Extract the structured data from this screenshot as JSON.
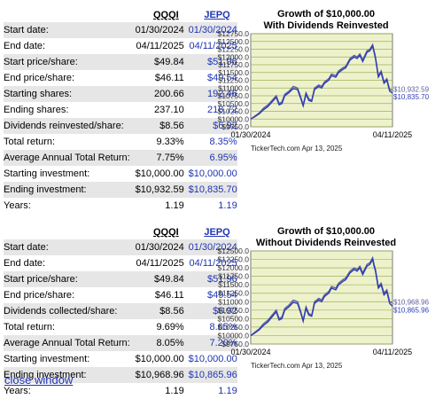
{
  "close_link": "close window",
  "colors": {
    "qqqi": "#5d5d9a",
    "jepq": "#2b3db8",
    "link": "#1f35b3",
    "plot_bg": "#eef2cc",
    "grid": "#9faf5a"
  },
  "sections": [
    {
      "headers": {
        "qqqi": "QQQI",
        "jepq": "JEPQ"
      },
      "rows": [
        {
          "label": "Start date:",
          "qqqi": "01/30/2024",
          "jepq": "01/30/2024"
        },
        {
          "label": "End date:",
          "qqqi": "04/11/2025",
          "jepq": "04/11/2025"
        },
        {
          "label": "Start price/share:",
          "qqqi": "$49.84",
          "jepq": "$51.96"
        },
        {
          "label": "End price/share:",
          "qqqi": "$46.11",
          "jepq": "$49.54"
        },
        {
          "label": "Starting shares:",
          "qqqi": "200.66",
          "jepq": "192.46"
        },
        {
          "label": "Ending shares:",
          "qqqi": "237.10",
          "jepq": "218.72"
        },
        {
          "label": "Dividends reinvested/share:",
          "qqqi": "$8.56",
          "jepq": "$6.92"
        },
        {
          "label": "Total return:",
          "qqqi": "9.33%",
          "jepq": "8.35%"
        },
        {
          "label": "Average Annual Total Return:",
          "qqqi": "7.75%",
          "jepq": "6.95%"
        },
        {
          "label": "Starting investment:",
          "qqqi": "$10,000.00",
          "jepq": "$10,000.00"
        },
        {
          "label": "Ending investment:",
          "qqqi": "$10,932.59",
          "jepq": "$10,835.70"
        },
        {
          "label": "Years:",
          "qqqi": "1.19",
          "jepq": "1.19"
        }
      ],
      "chart_data": {
        "type": "line",
        "title": "Growth of $10,000.00",
        "subtitle": "With Dividends Reinvested",
        "ylim": [
          9750,
          12750
        ],
        "yticks": [
          "$12750.0",
          "$12500.0",
          "$12250.0",
          "$12000.0",
          "$11750.0",
          "$11500.0",
          "$11250.0",
          "$11000.0",
          "$10750.0",
          "$10500.0",
          "$10250.0",
          "$10000.0",
          "$9750.0"
        ],
        "xlabels": [
          "01/30/2024",
          "04/11/2025"
        ],
        "credit": "TickerTech.com Apr 13, 2025",
        "end_labels": [
          "$10,932.59",
          "$10,835.70"
        ],
        "x": [
          0,
          0.03,
          0.06,
          0.09,
          0.12,
          0.15,
          0.18,
          0.2,
          0.22,
          0.24,
          0.27,
          0.3,
          0.33,
          0.35,
          0.37,
          0.39,
          0.41,
          0.43,
          0.45,
          0.48,
          0.5,
          0.52,
          0.55,
          0.57,
          0.6,
          0.62,
          0.65,
          0.67,
          0.7,
          0.73,
          0.75,
          0.77,
          0.79,
          0.82,
          0.84,
          0.86,
          0.87,
          0.88,
          0.9,
          0.92,
          0.94,
          0.96,
          0.98,
          1.0
        ],
        "series": [
          {
            "values": [
              10000,
              10100,
              10200,
              10350,
              10450,
              10600,
              10750,
              10500,
              10550,
              10800,
              10900,
              11050,
              11000,
              10750,
              10450,
              10850,
              10650,
              10600,
              11000,
              11100,
              11050,
              11200,
              11300,
              11450,
              11400,
              11550,
              11650,
              11700,
              11950,
              12050,
              12000,
              12100,
              11900,
              12200,
              12250,
              12400,
              12200,
              12000,
              11400,
              11550,
              11200,
              11300,
              10950,
              10930
            ]
          },
          {
            "values": [
              10000,
              10080,
              10170,
              10300,
              10400,
              10550,
              10700,
              10460,
              10500,
              10750,
              10850,
              10980,
              10950,
              10700,
              10420,
              10800,
              10600,
              10570,
              10950,
              11050,
              11000,
              11150,
              11250,
              11400,
              11350,
              11500,
              11600,
              11650,
              11900,
              12000,
              11950,
              12050,
              11850,
              12150,
              12200,
              12350,
              12150,
              11950,
              11350,
              11500,
              11150,
              11250,
              10900,
              10835
            ]
          }
        ]
      }
    },
    {
      "headers": {
        "qqqi": "QQQI",
        "jepq": "JEPQ"
      },
      "rows": [
        {
          "label": "Start date:",
          "qqqi": "01/30/2024",
          "jepq": "01/30/2024"
        },
        {
          "label": "End date:",
          "qqqi": "04/11/2025",
          "jepq": "04/11/2025"
        },
        {
          "label": "Start price/share:",
          "qqqi": "$49.84",
          "jepq": "$51.96"
        },
        {
          "label": "End price/share:",
          "qqqi": "$46.11",
          "jepq": "$49.54"
        },
        {
          "label": "Dividends collected/share:",
          "qqqi": "$8.56",
          "jepq": "$6.92"
        },
        {
          "label": "Total return:",
          "qqqi": "9.69%",
          "jepq": "8.65%"
        },
        {
          "label": "Average Annual Total Return:",
          "qqqi": "8.05%",
          "jepq": "7.20%"
        },
        {
          "label": "Starting investment:",
          "qqqi": "$10,000.00",
          "jepq": "$10,000.00"
        },
        {
          "label": "Ending investment:",
          "qqqi": "$10,968.96",
          "jepq": "$10,865.96"
        },
        {
          "label": "Years:",
          "qqqi": "1.19",
          "jepq": "1.19"
        }
      ],
      "chart_data": {
        "type": "line",
        "title": "Growth of $10,000.00",
        "subtitle": "Without Dividends Reinvested",
        "ylim": [
          9750,
          12500
        ],
        "yticks": [
          "$12500.0",
          "$12250.0",
          "$12000.0",
          "$11750.0",
          "$11500.0",
          "$11250.0",
          "$11000.0",
          "$10750.0",
          "$10500.0",
          "$10250.0",
          "$10000.0",
          "$9750.0"
        ],
        "xlabels": [
          "01/30/2024",
          "04/11/2025"
        ],
        "credit": "TickerTech.com Apr 13, 2025",
        "end_labels": [
          "$10,968.96",
          "$10,865.96"
        ],
        "x": [
          0,
          0.03,
          0.06,
          0.09,
          0.12,
          0.15,
          0.18,
          0.2,
          0.22,
          0.24,
          0.27,
          0.3,
          0.33,
          0.35,
          0.37,
          0.39,
          0.41,
          0.43,
          0.45,
          0.48,
          0.5,
          0.52,
          0.55,
          0.57,
          0.6,
          0.62,
          0.65,
          0.67,
          0.7,
          0.73,
          0.75,
          0.77,
          0.79,
          0.82,
          0.84,
          0.86,
          0.87,
          0.88,
          0.9,
          0.92,
          0.94,
          0.96,
          0.98,
          1.0
        ],
        "series": [
          {
            "values": [
              10000,
              10100,
              10200,
              10350,
              10450,
              10600,
              10750,
              10500,
              10550,
              10800,
              10900,
              11050,
              11000,
              10750,
              10450,
              10850,
              10650,
              10600,
              11000,
              11100,
              11050,
              11200,
              11300,
              11450,
              11400,
              11550,
              11650,
              11700,
              11900,
              12000,
              11950,
              12050,
              11850,
              12100,
              12150,
              12300,
              12100,
              11950,
              11450,
              11550,
              11250,
              11350,
              11000,
              10969
            ]
          },
          {
            "values": [
              10000,
              10080,
              10170,
              10300,
              10400,
              10550,
              10700,
              10460,
              10500,
              10750,
              10850,
              10980,
              10950,
              10700,
              10420,
              10800,
              10600,
              10570,
              10950,
              11050,
              11000,
              11150,
              11250,
              11400,
              11350,
              11500,
              11600,
              11650,
              11850,
              11950,
              11900,
              12000,
              11800,
              12050,
              12100,
              12250,
              12050,
              11900,
              11400,
              11500,
              11200,
              11300,
              10950,
              10866
            ]
          }
        ]
      }
    }
  ]
}
